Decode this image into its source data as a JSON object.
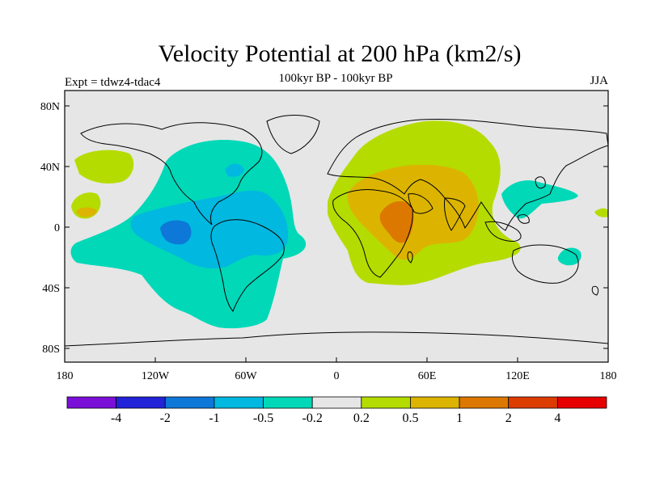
{
  "title": "Velocity Potential at 200 hPa (km2/s)",
  "subtitle": "100kyr BP - 100kyr BP",
  "experiment": "Expt = tdwz4-tdac4",
  "season": "JJA",
  "axes": {
    "lat_ticks": [
      "80N",
      "40N",
      "0",
      "40S",
      "80S"
    ],
    "lon_ticks": [
      "180",
      "120W",
      "60W",
      "0",
      "60E",
      "120E",
      "180"
    ]
  },
  "colorbar": {
    "labels": [
      "-4",
      "-2",
      "-1",
      "-0.5",
      "-0.2",
      "0.2",
      "0.5",
      "1",
      "2",
      "4"
    ],
    "colors": [
      "#7a10d8",
      "#2222d8",
      "#0d78d8",
      "#00b8e0",
      "#00d8b8",
      "#e6e6e6",
      "#b4dc00",
      "#dcb400",
      "#dc7800",
      "#dc3c00",
      "#e60000"
    ]
  },
  "colors": {
    "background": "#e6e6e6",
    "coast": "#000000"
  }
}
